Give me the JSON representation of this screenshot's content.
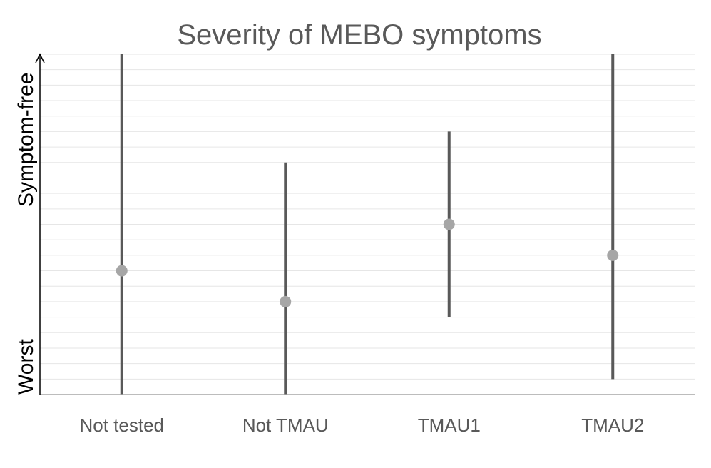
{
  "chart_data": {
    "type": "scatter",
    "title": "Severity of MEBO symptoms",
    "categories": [
      "Not tested",
      "Not TMAU",
      "TMAU1",
      "TMAU2"
    ],
    "y_labels": {
      "low": "Worst",
      "high": "Symptom-free"
    },
    "ylim": [
      0,
      11
    ],
    "series": [
      {
        "low": 0,
        "high": 11,
        "mean": 4
      },
      {
        "low": 0,
        "high": 7.5,
        "mean": 3
      },
      {
        "low": 2.5,
        "high": 8.5,
        "mean": 5.5
      },
      {
        "low": 0.5,
        "high": 11,
        "mean": 4.5
      }
    ],
    "grid": true,
    "legend": "none",
    "colors": {
      "bar": "#595959",
      "point": "#a6a6a6",
      "grid": "#e6e6e6",
      "axis": "#a6a6a6",
      "text": "#595959"
    }
  }
}
